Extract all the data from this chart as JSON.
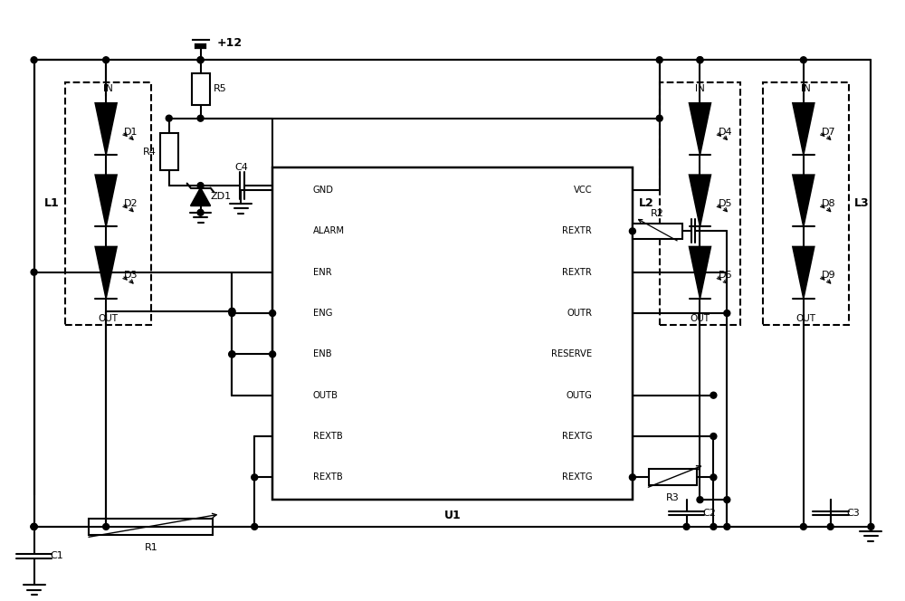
{
  "bg_color": "#ffffff",
  "line_color": "#000000",
  "lw": 1.5,
  "fig_width": 10.0,
  "fig_height": 6.64,
  "ic_left_pins": [
    "GND",
    "ALARM",
    "ENR",
    "ENG",
    "ENB",
    "OUTB",
    "REXTB",
    "REXTB"
  ],
  "ic_right_pins": [
    "VCC",
    "REXTR",
    "REXTR",
    "OUTR",
    "RESERVE",
    "OUTG",
    "REXTG",
    "REXTG"
  ],
  "ic_label": "U1",
  "xlim": [
    0,
    100
  ],
  "ylim": [
    0,
    66.4
  ]
}
